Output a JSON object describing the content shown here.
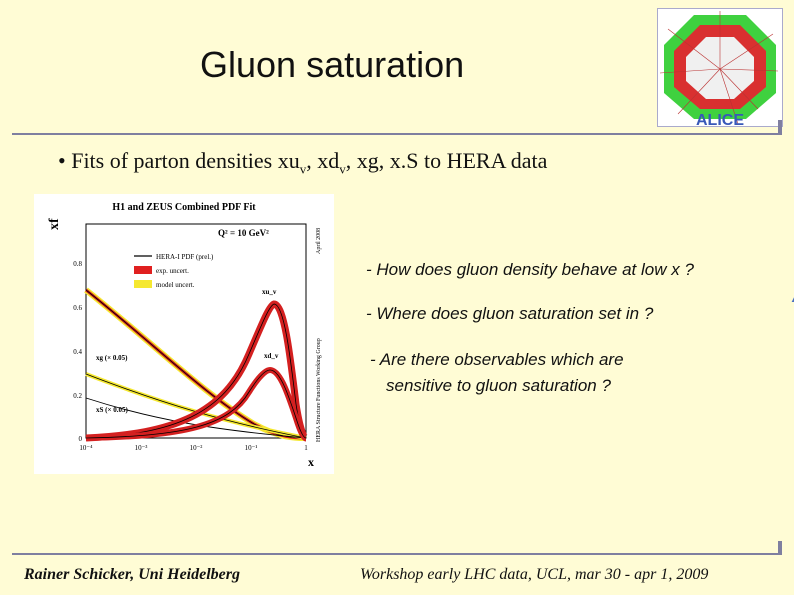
{
  "slide": {
    "title": "Gluon saturation",
    "bullet_prefix": "• Fits of parton densities xu",
    "bullet_sub1": "v",
    "bullet_mid": ", xd",
    "bullet_sub2": "v",
    "bullet_suffix": ", xg, x.S to HERA data",
    "questions": [
      "- How does gluon density behave at low x ?",
      "- Where does gluon saturation set in ?",
      "- Are there observables which are",
      "sensitive to gluon saturation ?"
    ],
    "footer_left": "Rainer Schicker, Uni Heidelberg",
    "footer_right": "Workshop early LHC data, UCL, mar 30 - apr 1, 2009"
  },
  "logo": {
    "text": "ALICE"
  },
  "figure": {
    "title": "H1 and ZEUS Combined PDF Fit",
    "q2": "Q² = 10 GeV²",
    "side_right": "HERA Structure Functions Working Group",
    "side_date": "April 2008",
    "ylabel": "xf",
    "xlabel": "x",
    "legend": [
      "HERA-I PDF (prel.)",
      "exp. uncert.",
      "model uncert."
    ],
    "curve_labels": [
      "xu_v",
      "xd_v",
      "xg (× 0.05)",
      "xS (× 0.05)"
    ],
    "yticks": [
      "0",
      "0.2",
      "0.4",
      "0.6",
      "0.8"
    ],
    "xticks": [
      "10⁻⁴",
      "10⁻³",
      "10⁻²",
      "10⁻¹",
      "1"
    ]
  }
}
